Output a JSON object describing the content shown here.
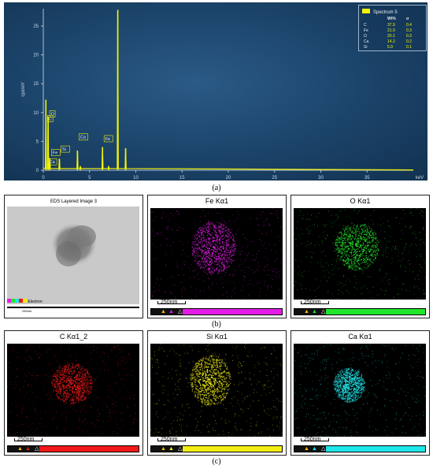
{
  "captions": {
    "a": "(a)",
    "b": "(b)",
    "c": "(c)"
  },
  "chart_data": {
    "type": "line",
    "title": "",
    "xlabel": "keV",
    "ylabel": "cps/eV",
    "xlim": [
      0,
      40
    ],
    "ylim": [
      0,
      28
    ],
    "x_ticks": [
      0,
      5,
      10,
      15,
      20,
      25,
      30,
      35
    ],
    "y_ticks": [
      0,
      5,
      10,
      15,
      20,
      25
    ],
    "peaks": [
      {
        "x": 0.28,
        "y": 12.2
      },
      {
        "x": 0.52,
        "y": 9.3
      },
      {
        "x": 0.71,
        "y": 2.1
      },
      {
        "x": 1.74,
        "y": 2.0
      },
      {
        "x": 3.69,
        "y": 3.4
      },
      {
        "x": 4.01,
        "y": 0.7
      },
      {
        "x": 6.4,
        "y": 4.0
      },
      {
        "x": 7.06,
        "y": 0.7
      },
      {
        "x": 8.05,
        "y": 27.8
      },
      {
        "x": 8.9,
        "y": 3.8
      }
    ],
    "peak_labels": [
      {
        "text": "O",
        "x": 0.52,
        "y": 9.5
      },
      {
        "text": "C",
        "x": 0.28,
        "y": 8.7
      },
      {
        "text": "Fe",
        "x": 0.71,
        "y": 2.8
      },
      {
        "text": "Si",
        "x": 1.74,
        "y": 3.4
      },
      {
        "text": "Ca",
        "x": 3.69,
        "y": 5.5
      },
      {
        "text": "Fe",
        "x": 6.4,
        "y": 5.2
      },
      {
        "text": "Ca",
        "x": 0.35,
        "y": 1.2
      }
    ],
    "legend": {
      "series": "Spectrum 5",
      "headers": [
        "Wt%",
        "σ"
      ],
      "rows": [
        {
          "el": "C",
          "wt": "37.9",
          "sigma": "0.4"
        },
        {
          "el": "Fe",
          "wt": "21.9",
          "sigma": "0.3"
        },
        {
          "el": "O",
          "wt": "20.1",
          "sigma": "0.3"
        },
        {
          "el": "Ca",
          "wt": "14.2",
          "sigma": "0.2"
        },
        {
          "el": "Si",
          "wt": "5.9",
          "sigma": "0.1"
        }
      ]
    },
    "series_color": "#f2f20a"
  },
  "maps": {
    "layered": {
      "title": "EDS Layered Image 3",
      "scale": "250nm",
      "tag": "Electron"
    },
    "fe": {
      "title": "Fe Kα1",
      "scale": "250nm",
      "color": "#e21ce6"
    },
    "o": {
      "title": "O Kα1",
      "scale": "250nm",
      "color": "#22e62a"
    },
    "c": {
      "title": "C Kα1_2",
      "scale": "250nm",
      "color": "#f01818"
    },
    "si": {
      "title": "Si Kα1",
      "scale": "250nm",
      "color": "#f2ee12"
    },
    "ca": {
      "title": "Ca Kα1",
      "scale": "250nm",
      "color": "#1ee6ea"
    }
  }
}
